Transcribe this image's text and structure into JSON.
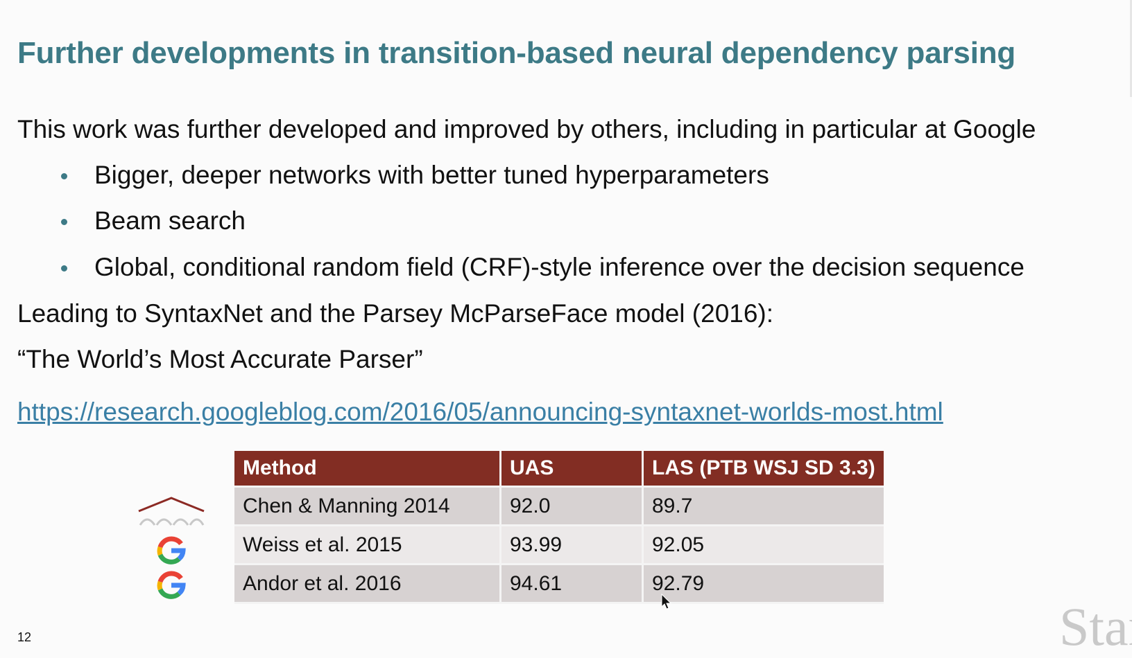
{
  "slide": {
    "title": "Further developments in transition-based neural dependency parsing",
    "intro": "This work was further developed and improved by others, including in particular at Google",
    "bullets": [
      "Bigger, deeper networks with better tuned hyperparameters",
      "Beam search",
      "Global, conditional random field (CRF)-style inference over the decision sequence"
    ],
    "leading_line": "Leading to SyntaxNet and the Parsey McParseFace model (2016):",
    "quote_line": "“The World’s Most Accurate Parser”",
    "link": "https://research.googleblog.com/2016/05/announcing-syntaxnet-worlds-most.html",
    "slide_number": "12",
    "brand_text": "Stan"
  },
  "table": {
    "headers": [
      "Method",
      "UAS",
      "LAS (PTB WSJ SD 3.3)"
    ],
    "rows": [
      {
        "method": "Chen & Manning 2014",
        "uas": "92.0",
        "las": "89.7",
        "logo": "stanford-arch-icon"
      },
      {
        "method": "Weiss et al. 2015",
        "uas": "93.99",
        "las": "92.05",
        "logo": "google-g-icon"
      },
      {
        "method": "Andor et al. 2016",
        "uas": "94.61",
        "las": "92.79",
        "logo": "google-g-icon"
      }
    ]
  },
  "colors": {
    "title": "#3d7a86",
    "table_header": "#822d23",
    "link": "#3a7fa5"
  }
}
